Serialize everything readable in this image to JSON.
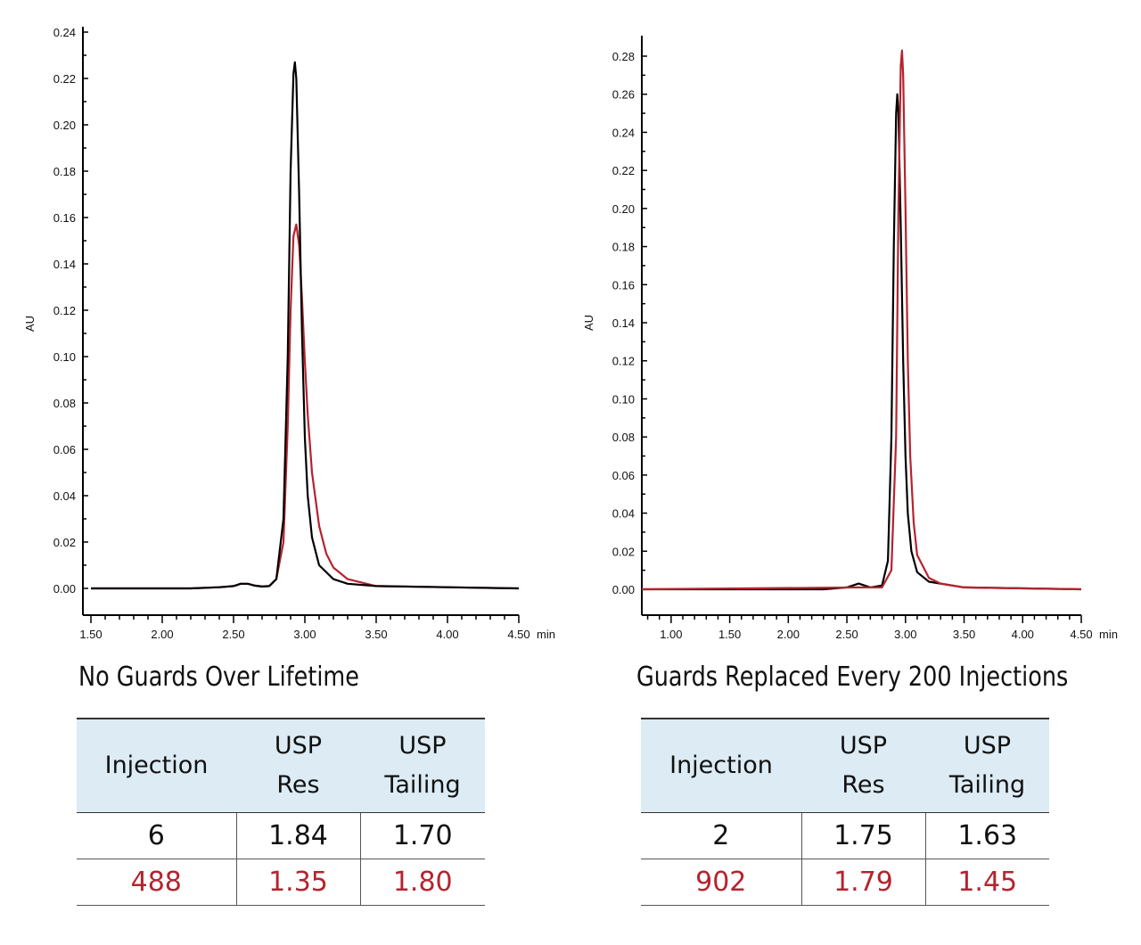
{
  "colors": {
    "black_series": "#000000",
    "red_series": "#b5232f",
    "header_bg": "#dcebf4"
  },
  "chart_data": [
    {
      "type": "line",
      "title": "No Guards Over Lifetime",
      "ylabel": "AU",
      "xunit": "min",
      "xlim": [
        1.5,
        4.5
      ],
      "ylim": [
        -0.01,
        0.24
      ],
      "xticks": [
        "1.50",
        "2.00",
        "2.50",
        "3.00",
        "3.50",
        "4.00",
        "4.50"
      ],
      "yticks": [
        "0.00",
        "0.02",
        "0.04",
        "0.06",
        "0.08",
        "0.10",
        "0.12",
        "0.14",
        "0.16",
        "0.18",
        "0.20",
        "0.22",
        "0.24"
      ],
      "grid": false,
      "series": [
        {
          "color": "#b5232f",
          "x": [
            1.5,
            2.2,
            2.4,
            2.5,
            2.55,
            2.6,
            2.65,
            2.7,
            2.75,
            2.8,
            2.85,
            2.88,
            2.9,
            2.92,
            2.94,
            2.96,
            2.98,
            3.0,
            3.02,
            3.05,
            3.1,
            3.15,
            3.2,
            3.3,
            3.5,
            4.0,
            4.5
          ],
          "y": [
            0,
            0,
            0.0005,
            0.001,
            0.002,
            0.002,
            0.0012,
            0.0008,
            0.001,
            0.004,
            0.02,
            0.07,
            0.12,
            0.152,
            0.157,
            0.148,
            0.125,
            0.098,
            0.075,
            0.05,
            0.027,
            0.015,
            0.009,
            0.004,
            0.001,
            0.0005,
            0
          ]
        },
        {
          "color": "#000000",
          "x": [
            1.5,
            2.2,
            2.4,
            2.5,
            2.55,
            2.6,
            2.65,
            2.7,
            2.75,
            2.8,
            2.85,
            2.88,
            2.9,
            2.92,
            2.93,
            2.94,
            2.96,
            2.98,
            3.0,
            3.02,
            3.05,
            3.1,
            3.2,
            3.3,
            3.5,
            4.0,
            4.5
          ],
          "y": [
            0,
            0,
            0.0005,
            0.001,
            0.002,
            0.002,
            0.0012,
            0.0008,
            0.001,
            0.004,
            0.03,
            0.1,
            0.18,
            0.222,
            0.227,
            0.22,
            0.17,
            0.11,
            0.065,
            0.04,
            0.022,
            0.01,
            0.004,
            0.002,
            0.001,
            0.0005,
            0
          ]
        }
      ]
    },
    {
      "type": "line",
      "title": "Guards Replaced Every 200 Injections",
      "ylabel": "AU",
      "xunit": "min",
      "xlim": [
        0.75,
        4.5
      ],
      "ylim": [
        -0.013,
        0.28
      ],
      "xticks": [
        "1.00",
        "1.50",
        "2.00",
        "2.50",
        "3.00",
        "3.50",
        "4.00",
        "4.50"
      ],
      "yticks": [
        "0.00",
        "0.02",
        "0.04",
        "0.06",
        "0.08",
        "0.10",
        "0.12",
        "0.14",
        "0.16",
        "0.18",
        "0.20",
        "0.22",
        "0.24",
        "0.26",
        "0.28"
      ],
      "grid": false,
      "series": [
        {
          "color": "#000000",
          "x": [
            2.3,
            2.5,
            2.6,
            2.65,
            2.7,
            2.8,
            2.85,
            2.88,
            2.9,
            2.92,
            2.93,
            2.94,
            2.96,
            2.98,
            3.0,
            3.02,
            3.05,
            3.1,
            3.2,
            3.5,
            4.5
          ],
          "y": [
            0,
            0.001,
            0.003,
            0.002,
            0.001,
            0.002,
            0.015,
            0.08,
            0.18,
            0.25,
            0.26,
            0.25,
            0.19,
            0.12,
            0.07,
            0.04,
            0.02,
            0.009,
            0.004,
            0.001,
            0
          ]
        },
        {
          "color": "#b5232f",
          "x": [
            0.75,
            2.6,
            2.8,
            2.88,
            2.92,
            2.94,
            2.96,
            2.97,
            2.98,
            3.0,
            3.02,
            3.04,
            3.07,
            3.1,
            3.2,
            3.3,
            3.5,
            4.5
          ],
          "y": [
            0,
            0.001,
            0.001,
            0.01,
            0.08,
            0.2,
            0.275,
            0.283,
            0.27,
            0.2,
            0.12,
            0.07,
            0.035,
            0.018,
            0.006,
            0.003,
            0.001,
            0
          ]
        }
      ]
    }
  ],
  "tables": [
    {
      "headers": [
        "Injection",
        "USP\nRes",
        "USP\nTailing"
      ],
      "rows": [
        [
          "6",
          "1.84",
          "1.70"
        ],
        [
          "488",
          "1.35",
          "1.80"
        ]
      ]
    },
    {
      "headers": [
        "Injection",
        "USP\nRes",
        "USP\nTailing"
      ],
      "rows": [
        [
          "2",
          "1.75",
          "1.63"
        ],
        [
          "902",
          "1.79",
          "1.45"
        ]
      ]
    }
  ]
}
